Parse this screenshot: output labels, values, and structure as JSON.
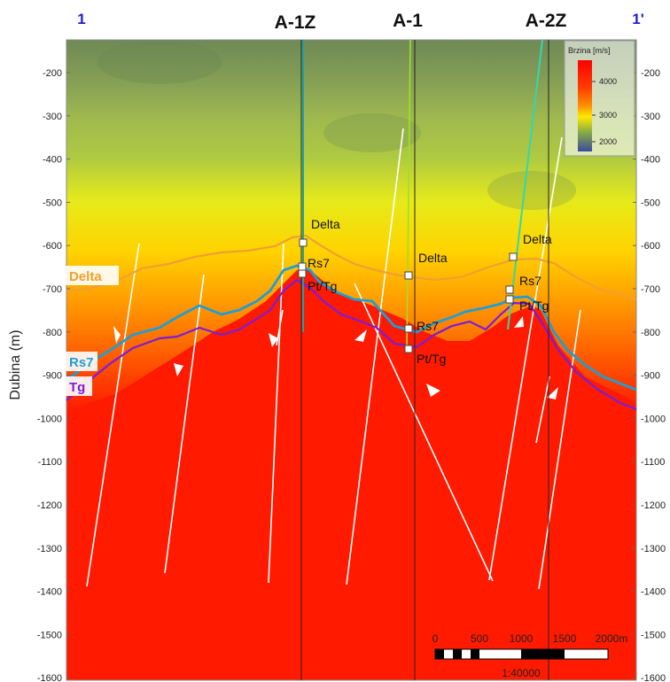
{
  "section": {
    "start_label": "1",
    "end_label": "1'",
    "y_axis_label": "Dubina (m)",
    "depth_ticks": [
      -200,
      -300,
      -400,
      -500,
      -600,
      -700,
      -800,
      -900,
      -1000,
      -1100,
      -1200,
      -1300,
      -1400,
      -1500,
      -1600
    ]
  },
  "wells": [
    {
      "name": "A-1Z"
    },
    {
      "name": "A-1"
    },
    {
      "name": "A-2Z"
    }
  ],
  "well_markers": {
    "a1z": {
      "delta": "Delta",
      "rs7": "Rs7",
      "pttg": "Pt/Tg"
    },
    "a1": {
      "delta": "Delta",
      "rs7": "Rs7",
      "pttg": "Pt/Tg"
    },
    "a2z": {
      "delta": "Delta",
      "rs7": "Rs7",
      "pttg": "Pt/Tg"
    }
  },
  "horizons": [
    {
      "label": "Delta",
      "color": "#f0a030"
    },
    {
      "label": "Rs7",
      "color": "#1e9ed8"
    },
    {
      "label": "Tg",
      "color": "#7a1ed8"
    }
  ],
  "legend": {
    "title": "Brzina [m/s]",
    "ticks": [
      "4000",
      "3000",
      "2000"
    ],
    "colors": [
      "#ff0000",
      "#ff8c00",
      "#ffff00",
      "#8cb43c",
      "#3c4ca0"
    ]
  },
  "scale_bar": {
    "ticks": [
      "0",
      "500",
      "1000",
      "1500",
      "2000m"
    ],
    "ratio": "1:40000"
  }
}
